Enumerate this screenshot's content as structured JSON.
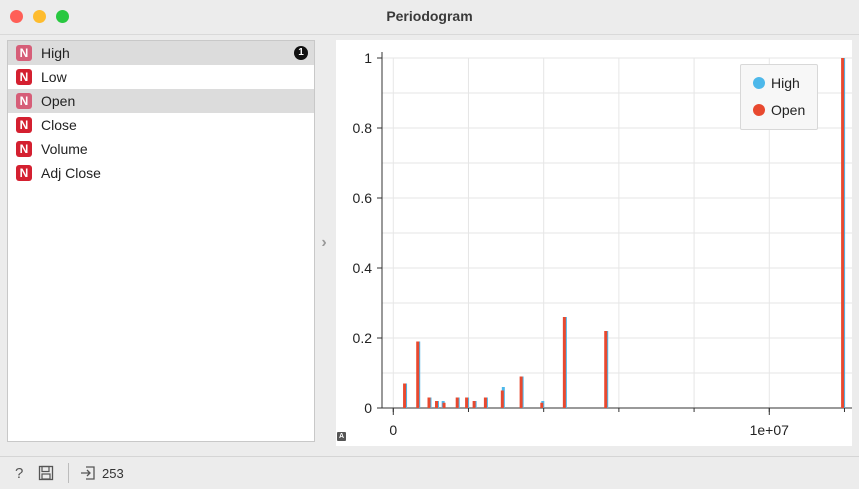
{
  "window": {
    "title": "Periodogram"
  },
  "variables": [
    {
      "label": "High",
      "badge": "N",
      "selected": true,
      "marker": "1"
    },
    {
      "label": "Low",
      "badge": "N",
      "selected": false
    },
    {
      "label": "Open",
      "badge": "N",
      "selected": true
    },
    {
      "label": "Close",
      "badge": "N",
      "selected": false
    },
    {
      "label": "Volume",
      "badge": "N",
      "selected": false
    },
    {
      "label": "Adj Close",
      "badge": "N",
      "selected": false
    }
  ],
  "splitter_icon": "chevron-right-icon",
  "chart_data": {
    "type": "bar",
    "title": "",
    "xlabel": "",
    "ylabel": "",
    "xlim": [
      -300000,
      12200000
    ],
    "ylim": [
      0,
      1
    ],
    "xticks": [
      0,
      10000000
    ],
    "xtick_labels": [
      "0",
      "1e+07"
    ],
    "yticks": [
      0,
      0.2,
      0.4,
      0.6,
      0.8,
      1
    ],
    "ytick_labels": [
      "0",
      "0.2",
      "0.4",
      "0.6",
      "0.8",
      "1"
    ],
    "grid": true,
    "legend_position": "top-right",
    "series": [
      {
        "name": "High",
        "color": "#4db8ea",
        "x": [
          300000,
          650000,
          950000,
          1150000,
          1300000,
          1700000,
          1950000,
          2150000,
          2450000,
          2900000,
          3400000,
          3950000,
          4550000,
          5650000,
          11950000
        ],
        "values": [
          0.07,
          0.19,
          0.03,
          0.02,
          0.02,
          0.03,
          0.03,
          0.02,
          0.03,
          0.06,
          0.09,
          0.02,
          0.26,
          0.22,
          1.0
        ]
      },
      {
        "name": "Open",
        "color": "#e8492f",
        "x": [
          300000,
          650000,
          950000,
          1150000,
          1350000,
          1700000,
          1950000,
          2150000,
          2450000,
          2900000,
          3400000,
          3950000,
          4550000,
          5650000,
          11950000
        ],
        "values": [
          0.07,
          0.19,
          0.03,
          0.02,
          0.015,
          0.03,
          0.03,
          0.02,
          0.03,
          0.05,
          0.09,
          0.015,
          0.26,
          0.22,
          1.0
        ]
      }
    ]
  },
  "statusbar": {
    "help_icon": "help-icon",
    "save_icon": "save-icon",
    "input_icon": "input-icon",
    "count": "253"
  }
}
